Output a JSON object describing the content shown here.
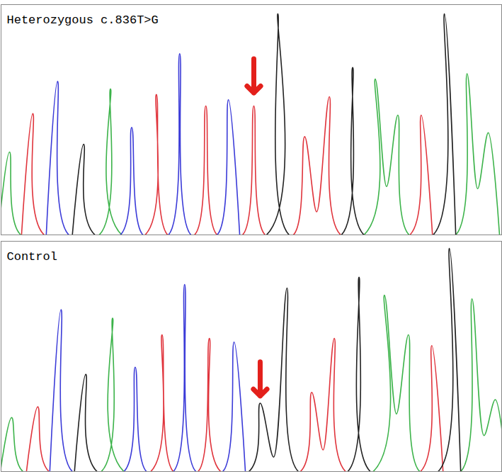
{
  "chart_data": [
    {
      "type": "line",
      "title": "Heterozygous c.836T>G",
      "xlim": [
        0,
        709
      ],
      "ylim": [
        0,
        300
      ],
      "tick_labels": false,
      "series": [
        {
          "color": "#3cb34a",
          "x": [
            -4,
            12,
            28,
            139,
            155,
            171,
            514,
            530,
            546,
            562,
            578,
            644,
            660,
            675,
            690,
            706
          ],
          "values": [
            0,
            108,
            0,
            0,
            190,
            0,
            0,
            203,
            63,
            156,
            0,
            0,
            210,
            60,
            133,
            0
          ]
        },
        {
          "color": "#e0343c",
          "x": [
            29,
            45,
            61,
            204,
            220,
            236,
            274,
            290,
            306,
            342,
            358,
            374,
            414,
            430,
            447,
            465,
            481,
            579,
            595,
            611
          ],
          "values": [
            0,
            158,
            0,
            0,
            183,
            0,
            0,
            168,
            0,
            0,
            168,
            0,
            0,
            128,
            30,
            180,
            0,
            0,
            156,
            0
          ]
        },
        {
          "color": "#3b3bd8",
          "x": [
            64,
            80,
            96,
            169,
            185,
            201,
            237,
            253,
            269,
            306,
            322,
            338
          ],
          "values": [
            0,
            200,
            0,
            0,
            140,
            0,
            0,
            236,
            0,
            0,
            176,
            0
          ]
        },
        {
          "color": "#222222",
          "x": [
            101,
            117,
            133,
            376,
            392,
            408,
            482,
            498,
            514,
            612,
            628,
            644
          ],
          "values": [
            0,
            118,
            0,
            0,
            288,
            0,
            0,
            218,
            0,
            0,
            288,
            0
          ]
        }
      ],
      "annotations": [
        {
          "x": 358,
          "y": 185,
          "color": "#e3201b"
        }
      ]
    },
    {
      "type": "line",
      "title": "Control",
      "xlim": [
        0,
        709
      ],
      "ylim": [
        0,
        320
      ],
      "tick_labels": false,
      "series": [
        {
          "color": "#3cb34a",
          "x": [
            -1,
            15,
            31,
            142,
            158,
            174,
            527,
            543,
            560,
            577,
            593,
            651,
            667,
            684,
            700,
            716
          ],
          "values": [
            0,
            75,
            0,
            0,
            213,
            0,
            0,
            245,
            80,
            190,
            0,
            0,
            240,
            50,
            100,
            0
          ]
        },
        {
          "color": "#e0343c",
          "x": [
            36,
            52,
            68,
            212,
            228,
            244,
            279,
            295,
            311,
            424,
            440,
            456,
            472,
            488,
            594,
            610,
            626
          ],
          "values": [
            0,
            90,
            0,
            0,
            190,
            0,
            0,
            185,
            0,
            0,
            110,
            30,
            185,
            0,
            0,
            175,
            0
          ]
        },
        {
          "color": "#3b3bd8",
          "x": [
            69,
            85,
            101,
            174,
            190,
            206,
            244,
            260,
            276,
            314,
            330,
            346
          ],
          "values": [
            0,
            225,
            0,
            0,
            145,
            0,
            0,
            260,
            0,
            0,
            180,
            0
          ]
        },
        {
          "color": "#222222",
          "x": [
            104,
            120,
            136,
            351,
            367,
            386,
            405,
            421,
            491,
            507,
            523,
            619,
            635,
            651
          ],
          "values": [
            0,
            135,
            0,
            0,
            95,
            20,
            255,
            0,
            0,
            270,
            0,
            0,
            310,
            0
          ]
        }
      ],
      "annotations": [
        {
          "x": 367,
          "y": 105,
          "color": "#e3201b"
        }
      ]
    }
  ]
}
